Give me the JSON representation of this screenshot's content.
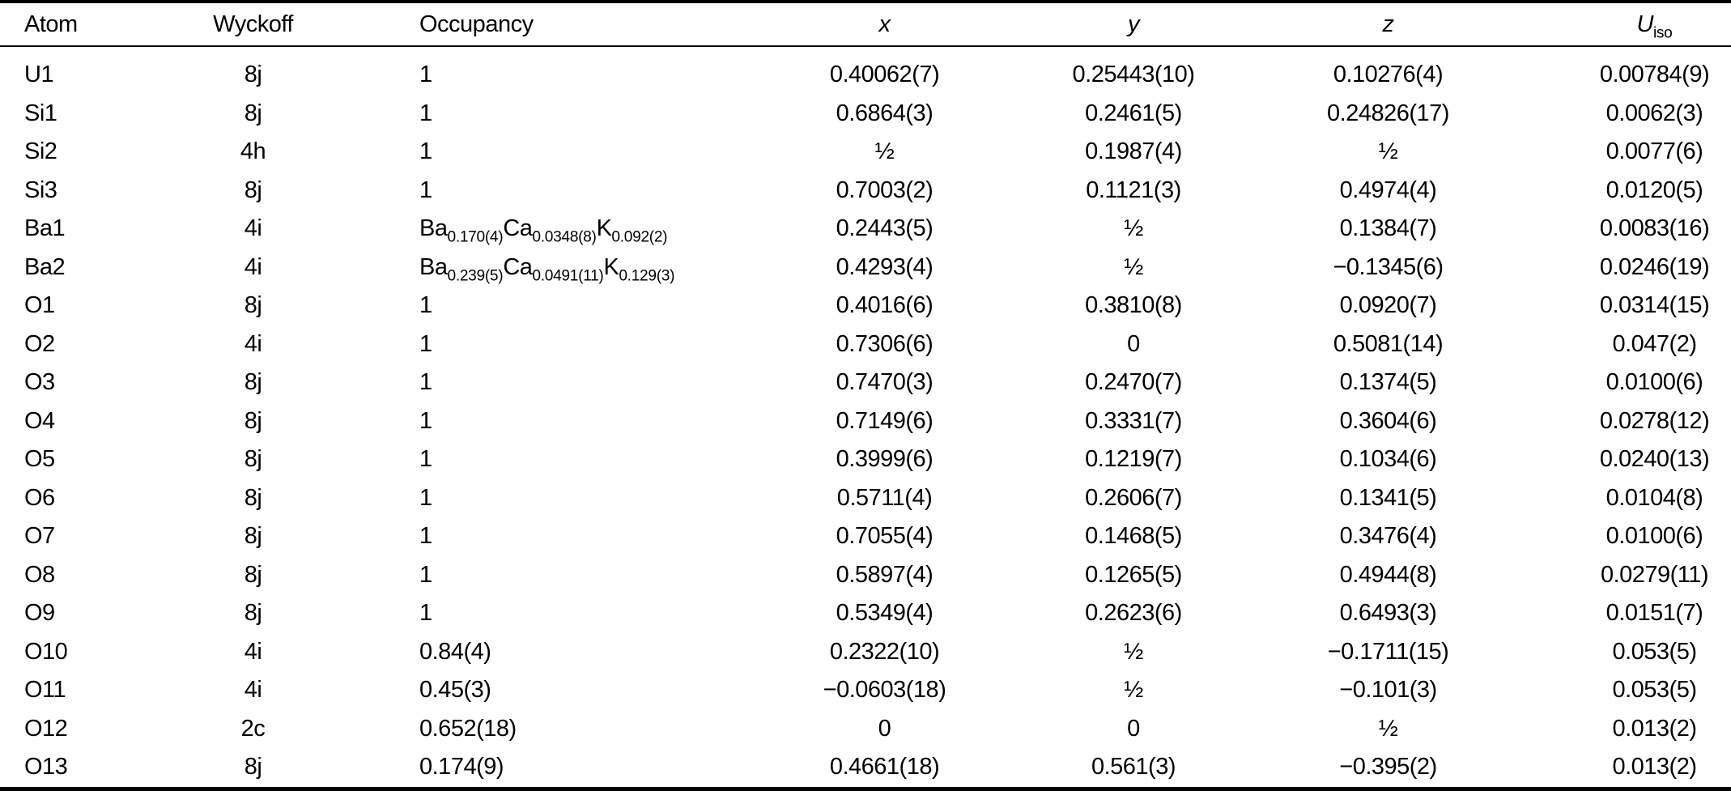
{
  "colors": {
    "background": "#ffffff",
    "text": "#000000",
    "rule": "#000000"
  },
  "table": {
    "columns": [
      {
        "key": "atom",
        "label": "Atom",
        "italic": false
      },
      {
        "key": "wyckoff",
        "label": "Wyckoff",
        "italic": false
      },
      {
        "key": "occupancy",
        "label": "Occupancy",
        "italic": false
      },
      {
        "key": "x",
        "label": "x",
        "italic": true
      },
      {
        "key": "y",
        "label": "y",
        "italic": true
      },
      {
        "key": "z",
        "label": "z",
        "italic": true
      },
      {
        "key": "uiso",
        "label": "U",
        "label_sub": "iso",
        "italic": true
      }
    ],
    "rows": [
      {
        "atom": "U1",
        "wyckoff": "8j",
        "occupancy": [
          {
            "t": "1"
          }
        ],
        "x": "0.40062(7)",
        "y": "0.25443(10)",
        "z": "0.10276(4)",
        "uiso": "0.00784(9)"
      },
      {
        "atom": "Si1",
        "wyckoff": "8j",
        "occupancy": [
          {
            "t": "1"
          }
        ],
        "x": "0.6864(3)",
        "y": "0.2461(5)",
        "z": "0.24826(17)",
        "uiso": "0.0062(3)"
      },
      {
        "atom": "Si2",
        "wyckoff": "4h",
        "occupancy": [
          {
            "t": "1"
          }
        ],
        "x": "½",
        "y": "0.1987(4)",
        "z": "½",
        "uiso": "0.0077(6)"
      },
      {
        "atom": "Si3",
        "wyckoff": "8j",
        "occupancy": [
          {
            "t": "1"
          }
        ],
        "x": "0.7003(2)",
        "y": "0.1121(3)",
        "z": "0.4974(4)",
        "uiso": "0.0120(5)"
      },
      {
        "atom": "Ba1",
        "wyckoff": "4i",
        "occupancy": [
          {
            "t": "Ba",
            "sub": "0.170(4)"
          },
          {
            "t": "Ca",
            "sub": "0.0348(8)"
          },
          {
            "t": "K",
            "sub": "0.092(2)"
          }
        ],
        "x": "0.2443(5)",
        "y": "½",
        "z": "0.1384(7)",
        "uiso": "0.0083(16)"
      },
      {
        "atom": "Ba2",
        "wyckoff": "4i",
        "occupancy": [
          {
            "t": "Ba",
            "sub": "0.239(5)"
          },
          {
            "t": "Ca",
            "sub": "0.0491(11)"
          },
          {
            "t": "K",
            "sub": "0.129(3)"
          }
        ],
        "x": "0.4293(4)",
        "y": "½",
        "z": "−0.1345(6)",
        "uiso": "0.0246(19)"
      },
      {
        "atom": "O1",
        "wyckoff": "8j",
        "occupancy": [
          {
            "t": "1"
          }
        ],
        "x": "0.4016(6)",
        "y": "0.3810(8)",
        "z": "0.0920(7)",
        "uiso": "0.0314(15)"
      },
      {
        "atom": "O2",
        "wyckoff": "4i",
        "occupancy": [
          {
            "t": "1"
          }
        ],
        "x": "0.7306(6)",
        "y": "0",
        "z": "0.5081(14)",
        "uiso": "0.047(2)"
      },
      {
        "atom": "O3",
        "wyckoff": "8j",
        "occupancy": [
          {
            "t": "1"
          }
        ],
        "x": "0.7470(3)",
        "y": "0.2470(7)",
        "z": "0.1374(5)",
        "uiso": "0.0100(6)"
      },
      {
        "atom": "O4",
        "wyckoff": "8j",
        "occupancy": [
          {
            "t": "1"
          }
        ],
        "x": "0.7149(6)",
        "y": "0.3331(7)",
        "z": "0.3604(6)",
        "uiso": "0.0278(12)"
      },
      {
        "atom": "O5",
        "wyckoff": "8j",
        "occupancy": [
          {
            "t": "1"
          }
        ],
        "x": "0.3999(6)",
        "y": "0.1219(7)",
        "z": "0.1034(6)",
        "uiso": "0.0240(13)"
      },
      {
        "atom": "O6",
        "wyckoff": "8j",
        "occupancy": [
          {
            "t": "1"
          }
        ],
        "x": "0.5711(4)",
        "y": "0.2606(7)",
        "z": "0.1341(5)",
        "uiso": "0.0104(8)"
      },
      {
        "atom": "O7",
        "wyckoff": "8j",
        "occupancy": [
          {
            "t": "1"
          }
        ],
        "x": "0.7055(4)",
        "y": "0.1468(5)",
        "z": "0.3476(4)",
        "uiso": "0.0100(6)"
      },
      {
        "atom": "O8",
        "wyckoff": "8j",
        "occupancy": [
          {
            "t": "1"
          }
        ],
        "x": "0.5897(4)",
        "y": "0.1265(5)",
        "z": "0.4944(8)",
        "uiso": "0.0279(11)"
      },
      {
        "atom": "O9",
        "wyckoff": "8j",
        "occupancy": [
          {
            "t": "1"
          }
        ],
        "x": "0.5349(4)",
        "y": "0.2623(6)",
        "z": "0.6493(3)",
        "uiso": "0.0151(7)"
      },
      {
        "atom": "O10",
        "wyckoff": "4i",
        "occupancy": [
          {
            "t": "0.84(4)"
          }
        ],
        "x": "0.2322(10)",
        "y": "½",
        "z": "−0.1711(15)",
        "uiso": "0.053(5)"
      },
      {
        "atom": "O11",
        "wyckoff": "4i",
        "occupancy": [
          {
            "t": "0.45(3)"
          }
        ],
        "x": "−0.0603(18)",
        "y": "½",
        "z": "−0.101(3)",
        "uiso": "0.053(5)"
      },
      {
        "atom": "O12",
        "wyckoff": "2c",
        "occupancy": [
          {
            "t": "0.652(18)"
          }
        ],
        "x": "0",
        "y": "0",
        "z": "½",
        "uiso": "0.013(2)"
      },
      {
        "atom": "O13",
        "wyckoff": "8j",
        "occupancy": [
          {
            "t": "0.174(9)"
          }
        ],
        "x": "0.4661(18)",
        "y": "0.561(3)",
        "z": "−0.395(2)",
        "uiso": "0.013(2)"
      }
    ]
  }
}
